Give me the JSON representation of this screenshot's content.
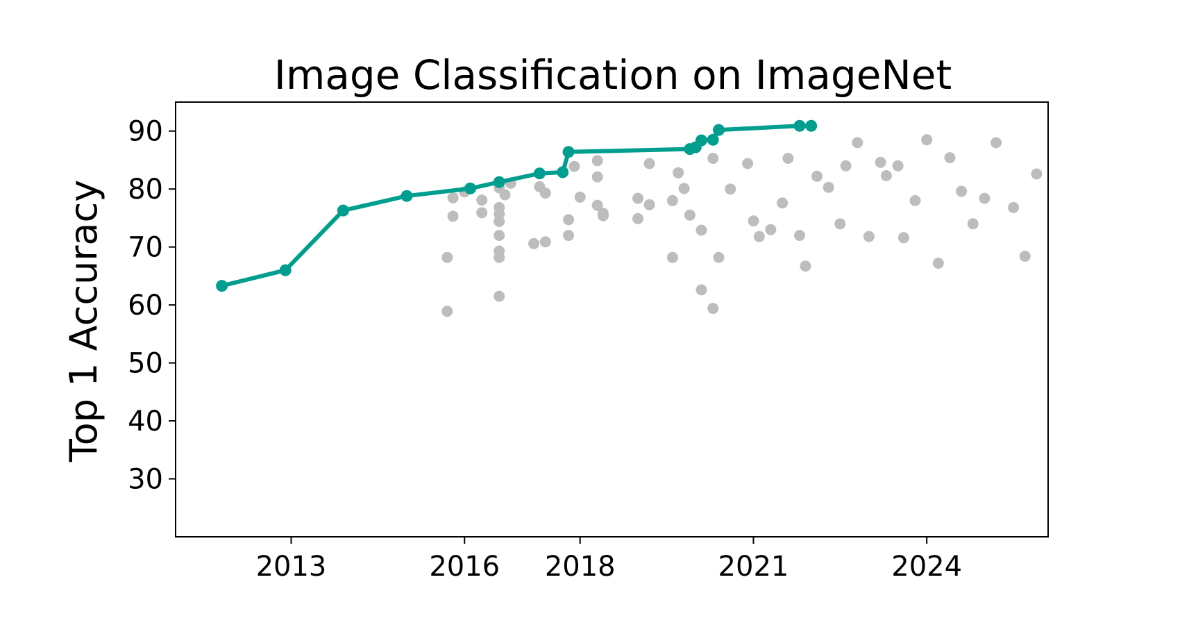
{
  "chart_data": {
    "type": "scatter",
    "title": "Image Classification on ImageNet",
    "xlabel": "",
    "ylabel": "Top 1 Accuracy",
    "xlim": [
      2011.0,
      2026.1
    ],
    "ylim": [
      20,
      95
    ],
    "xticks": [
      2013,
      2016,
      2018,
      2021,
      2024
    ],
    "yticks": [
      30,
      40,
      50,
      60,
      70,
      80,
      90
    ],
    "grid": false,
    "colors": {
      "sota": "#009e8e",
      "other": "#bdbdbd"
    },
    "series": [
      {
        "kind": "sota-line",
        "x": [
          2011.8,
          2012.9,
          2013.9,
          2015.0,
          2016.1,
          2016.6,
          2017.3,
          2017.7,
          2017.8,
          2019.9,
          2020.0,
          2020.1,
          2020.3,
          2020.4,
          2021.8,
          2022.0
        ],
        "y": [
          63.3,
          66.0,
          76.3,
          78.8,
          80.1,
          81.2,
          82.7,
          82.9,
          86.4,
          86.9,
          87.2,
          88.4,
          88.5,
          90.2,
          90.9,
          90.9
        ]
      },
      {
        "kind": "other-models",
        "x": [
          2015.7,
          2015.7,
          2015.8,
          2015.8,
          2016.0,
          2016.3,
          2016.3,
          2016.6,
          2016.6,
          2016.6,
          2016.6,
          2016.6,
          2016.6,
          2016.6,
          2016.6,
          2016.7,
          2016.8,
          2017.2,
          2017.3,
          2017.4,
          2017.4,
          2017.8,
          2017.8,
          2017.9,
          2018.0,
          2018.3,
          2018.3,
          2018.3,
          2018.4,
          2018.4,
          2019.0,
          2019.0,
          2019.2,
          2019.2,
          2019.6,
          2019.6,
          2019.7,
          2019.8,
          2019.9,
          2020.1,
          2020.1,
          2020.3,
          2020.3,
          2020.4,
          2020.6,
          2020.9,
          2021.0,
          2021.1,
          2021.3,
          2021.5,
          2021.6,
          2021.8,
          2021.9,
          2022.1,
          2022.3,
          2022.5,
          2022.6,
          2022.8,
          2023.0,
          2023.2,
          2023.3,
          2023.5,
          2023.6,
          2023.8,
          2024.0,
          2024.2,
          2024.4,
          2024.6,
          2024.8,
          2025.0,
          2025.2,
          2025.5,
          2025.7,
          2025.9
        ],
        "y": [
          68.2,
          58.9,
          75.3,
          78.5,
          79.5,
          78.1,
          75.9,
          61.5,
          68.2,
          69.3,
          72.0,
          74.4,
          75.7,
          76.8,
          80.2,
          79.0,
          81.0,
          70.6,
          80.4,
          79.3,
          70.9,
          72.0,
          74.7,
          83.9,
          78.6,
          77.2,
          82.1,
          84.9,
          75.8,
          75.4,
          78.4,
          74.9,
          77.3,
          84.4,
          68.2,
          78.0,
          82.8,
          80.1,
          75.5,
          72.9,
          62.6,
          59.4,
          85.3,
          68.2,
          80.0,
          84.4,
          74.5,
          71.8,
          73.0,
          77.6,
          85.3,
          72.0,
          66.7,
          82.2,
          80.3,
          74.0,
          84.0,
          88.0,
          71.8,
          84.6,
          82.3,
          84.0,
          71.6,
          78.0,
          88.5,
          67.2,
          85.4,
          79.6,
          74.0,
          78.4,
          88.0,
          76.8,
          68.4,
          82.6
        ]
      }
    ]
  }
}
